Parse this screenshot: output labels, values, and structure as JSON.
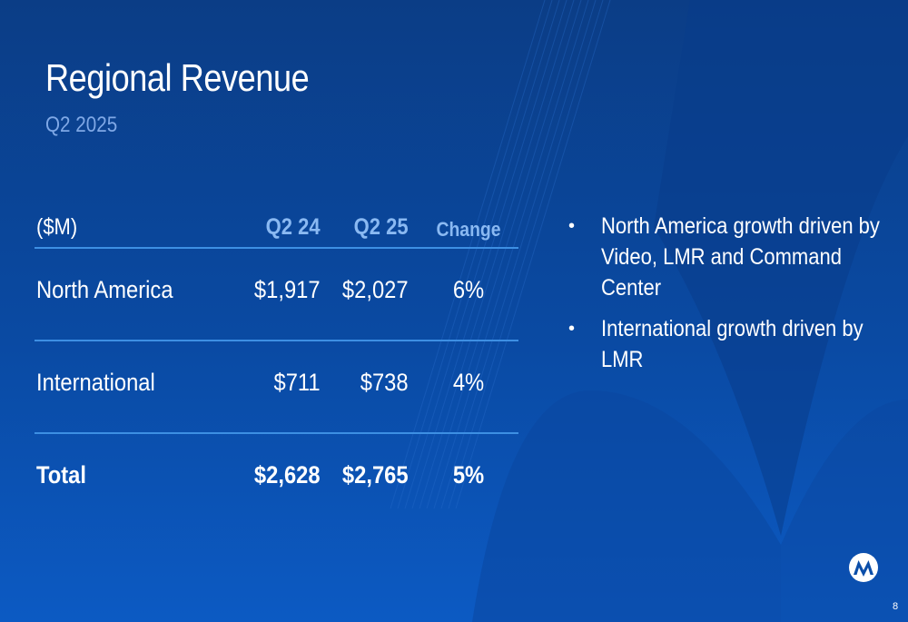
{
  "slide": {
    "title": "Regional Revenue",
    "subtitle": "Q2 2025",
    "page_number": "8"
  },
  "table": {
    "headers": {
      "label": "($M)",
      "col1": "Q2 24",
      "col2": "Q2 25",
      "col3": "Change"
    },
    "rows": [
      {
        "label": "North America",
        "col1": "$1,917",
        "col2": "$2,027",
        "col3": "6%"
      },
      {
        "label": "International",
        "col1": "$711",
        "col2": "$738",
        "col3": "4%"
      },
      {
        "label": "Total",
        "col1": "$2,628",
        "col2": "$2,765",
        "col3": "5%"
      }
    ]
  },
  "bullets": [
    "North America growth driven by Video, LMR and Command Center",
    "International growth driven by LMR"
  ],
  "bullet_symbol": "•",
  "logo": {
    "icon": "motorola-batwing-logo-icon"
  },
  "colors": {
    "background_top": "#0b3d86",
    "background_bottom": "#0c5ac3",
    "subtitle": "#7fa8e6",
    "header_accent": "#8ab9f2",
    "rule": "#3d8fe3"
  }
}
